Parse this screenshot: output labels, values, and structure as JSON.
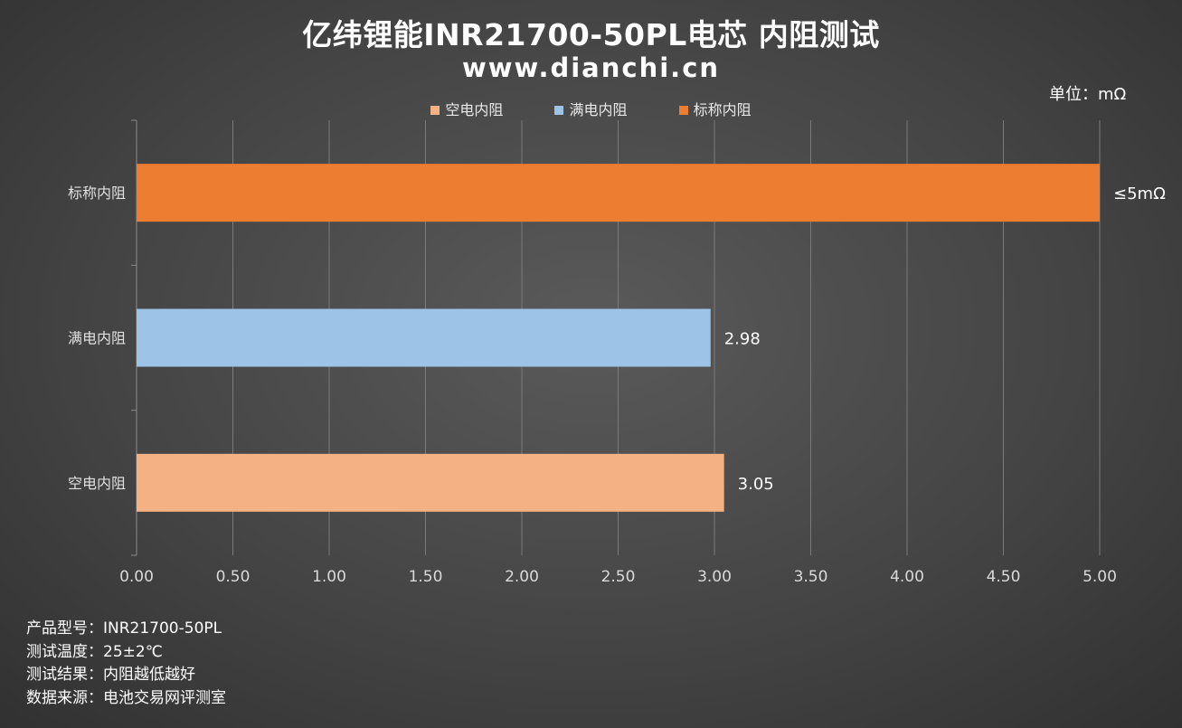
{
  "title": "亿纬锂能INR21700-50PL电芯 内阻测试",
  "subtitle": "www.dianchi.cn",
  "unit_label": "单位：mΩ",
  "legend": [
    {
      "label": "空电内阻",
      "color": "#f4b183"
    },
    {
      "label": "满电内阻",
      "color": "#9dc3e6"
    },
    {
      "label": "标称内阻",
      "color": "#ed7d31"
    }
  ],
  "chart_data": {
    "type": "bar",
    "orientation": "horizontal",
    "categories": [
      "标称内阻",
      "满电内阻",
      "空电内阻"
    ],
    "values": [
      5.0,
      2.98,
      3.05
    ],
    "data_labels": [
      "≤5mΩ",
      "2.98",
      "3.05"
    ],
    "colors": [
      "#ed7d31",
      "#9dc3e6",
      "#f4b183"
    ],
    "xlim": [
      0,
      5.0
    ],
    "x_ticks": [
      "0.00",
      "0.50",
      "1.00",
      "1.50",
      "2.00",
      "2.50",
      "3.00",
      "3.50",
      "4.00",
      "4.50",
      "5.00"
    ],
    "grid": true,
    "legend_position": "top"
  },
  "footer": [
    "产品型号：INR21700-50PL",
    "测试温度：25±2℃",
    "测试结果：内阻越低越好",
    "数据来源：电池交易网评测室"
  ]
}
